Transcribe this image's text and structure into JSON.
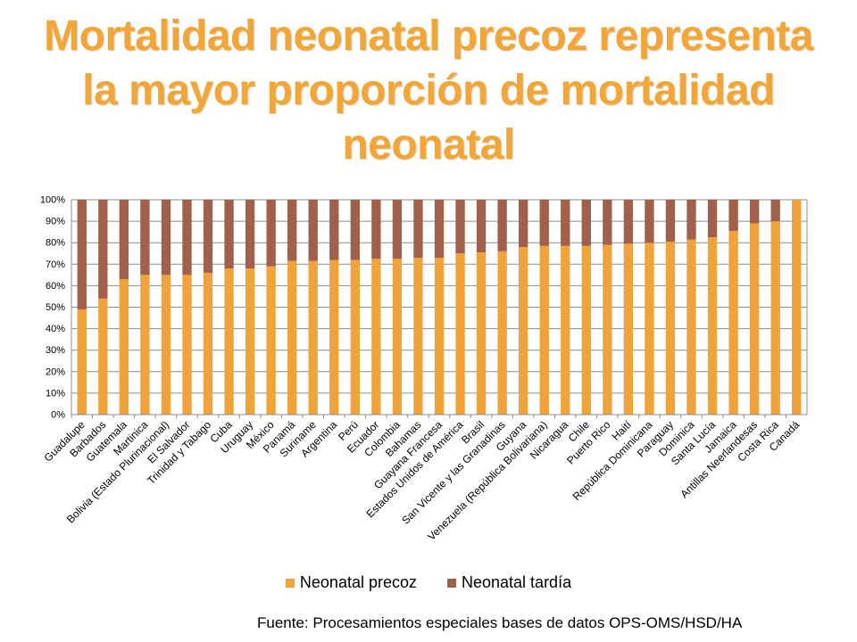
{
  "title": "Mortalidad neonatal precoz representa la mayor proporción de mortalidad neonatal",
  "source": "Fuente: Procesamientos especiales bases de datos OPS-OMS/HSD/HA",
  "colors": {
    "precoz": "#f0a33a",
    "tardia": "#a0604a",
    "grid": "#8c8c8c"
  },
  "chart_data": {
    "type": "bar",
    "stacked": true,
    "categories": [
      "Guadalupe",
      "Barbados",
      "Guatemala",
      "Martinica",
      "Bolivia (Estado Plurinacional)",
      "El Salvador",
      "Trinidad y Tabago",
      "Cuba",
      "Uruguay",
      "México",
      "Panamá",
      "Suriname",
      "Argentina",
      "Perú",
      "Ecuador",
      "Colombia",
      "Bahamas",
      "Guayana Francesa",
      "Estados Unidos de América",
      "Brasil",
      "San Vicente y las Granadinas",
      "Guyana",
      "Venezuela (República Bolivariana)",
      "Nicaragua",
      "Chile",
      "Puerto Rico",
      "Haití",
      "República Dominicana",
      "Paraguay",
      "Dominica",
      "Santa Lucía",
      "Jamaica",
      "Antillas Neerlandesas",
      "Costa Rica",
      "Canadá"
    ],
    "series": [
      {
        "name": "Neonatal precoz",
        "values": [
          49,
          54,
          63,
          65,
          65,
          65,
          66,
          68,
          68,
          69,
          71.5,
          71.5,
          72,
          72,
          72.5,
          72.5,
          73,
          73,
          75,
          75.5,
          76,
          78,
          78.5,
          78.5,
          78.5,
          79,
          79.5,
          80,
          80.5,
          81.5,
          82.5,
          85.5,
          89,
          90,
          100
        ]
      },
      {
        "name": "Neonatal tardía",
        "values": [
          51,
          46,
          37,
          35,
          35,
          35,
          34,
          32,
          32,
          31,
          28.5,
          28.5,
          28,
          28,
          27.5,
          27.5,
          27,
          27,
          25,
          24.5,
          24,
          22,
          21.5,
          21.5,
          21.5,
          21,
          20.5,
          20,
          19.5,
          18.5,
          17.5,
          14.5,
          11,
          10,
          0
        ]
      }
    ],
    "ylim": [
      0,
      100
    ],
    "yticks": [
      "0%",
      "10%",
      "20%",
      "30%",
      "40%",
      "50%",
      "60%",
      "70%",
      "80%",
      "90%",
      "100%"
    ],
    "grid": true,
    "legend_position": "bottom"
  }
}
